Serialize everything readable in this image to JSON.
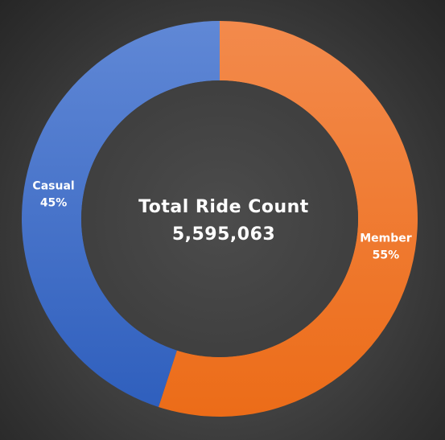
{
  "chart_data": {
    "type": "pie",
    "variant": "donut",
    "center_title": "Total Ride Count",
    "center_value": "5,595,063",
    "slices": [
      {
        "label": "Member",
        "percent_label": "55%",
        "value": 55,
        "color": "#f07a2c"
      },
      {
        "label": "Casual",
        "percent_label": "45%",
        "value": 45,
        "color": "#4f7fd0"
      }
    ],
    "start_angle_deg": 0,
    "direction": "clockwise",
    "legend": "none"
  }
}
